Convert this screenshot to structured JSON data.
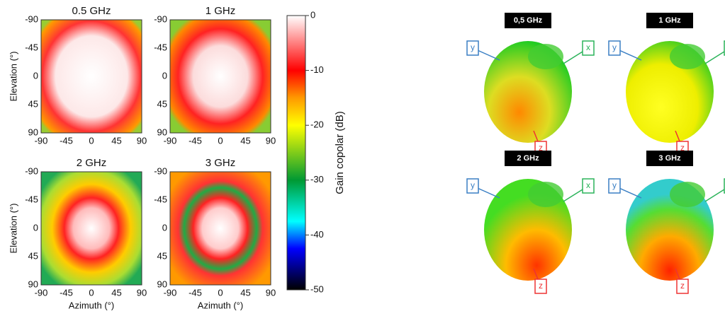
{
  "heatmaps": {
    "panels": [
      {
        "title": "0.5 GHz"
      },
      {
        "title": "1 GHz"
      },
      {
        "title": "2 GHz"
      },
      {
        "title": "3 GHz"
      }
    ],
    "x_ticks": [
      -90,
      -45,
      0,
      45,
      90
    ],
    "y_ticks": [
      -90,
      -45,
      0,
      45,
      90
    ],
    "x_label": "Azimuth (°)",
    "y_label": "Elevation (°)"
  },
  "colorbar": {
    "ticks": [
      0,
      -10,
      -20,
      -30,
      -40,
      -50
    ],
    "label": "Gain copolar (dB)"
  },
  "patterns": {
    "panels": [
      {
        "title": "0,5 GHz"
      },
      {
        "title": "1 GHz"
      },
      {
        "title": "2 GHz"
      },
      {
        "title": "3 GHz"
      }
    ],
    "axis_labels": [
      "y",
      "x",
      "z"
    ]
  }
}
